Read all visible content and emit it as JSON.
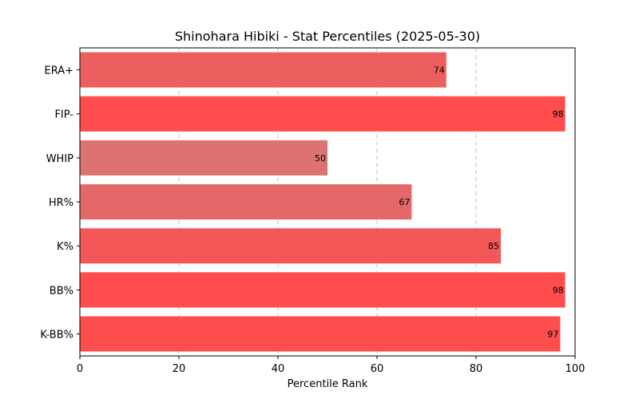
{
  "chart_data": {
    "type": "bar",
    "orientation": "horizontal",
    "title": "Shinohara Hibiki - Stat Percentiles (2025-05-30)",
    "xlabel": "Percentile Rank",
    "ylabel": "",
    "xlim": [
      0,
      100
    ],
    "xticks": [
      0,
      20,
      40,
      60,
      80,
      100
    ],
    "grid": "x-dashed",
    "categories": [
      "ERA+",
      "FIP-",
      "WHIP",
      "HR%",
      "K%",
      "BB%",
      "K-BB%"
    ],
    "values": [
      74,
      98,
      50,
      67,
      85,
      98,
      97
    ],
    "colors": [
      "#ec5f5f",
      "#ff4c4c",
      "#dc7272",
      "#e46868",
      "#f35757",
      "#ff4c4c",
      "#fe4d4d"
    ]
  }
}
